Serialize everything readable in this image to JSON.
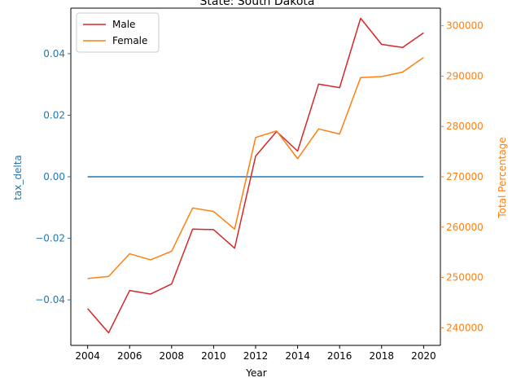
{
  "chart_data": {
    "type": "line",
    "title": "State: South Dakota",
    "xlabel": "Year",
    "ylabel_left": "tax_delta",
    "ylabel_right": "Total Percentage",
    "x": [
      2004,
      2005,
      2006,
      2007,
      2008,
      2009,
      2010,
      2011,
      2012,
      2013,
      2014,
      2015,
      2016,
      2017,
      2018,
      2019,
      2020
    ],
    "x_ticks": [
      "2004",
      "2006",
      "2008",
      "2010",
      "2012",
      "2014",
      "2016",
      "2018",
      "2020"
    ],
    "xlim": [
      2003.2,
      2020.8
    ],
    "left_axis": {
      "ylim": [
        -0.0548,
        0.0548
      ],
      "ticks": [
        -0.04,
        -0.02,
        0.0,
        0.02,
        0.04
      ],
      "tick_labels": [
        "−0.04",
        "−0.02",
        "0.00",
        "0.02",
        "0.04"
      ],
      "color": "#1f77b4"
    },
    "right_axis": {
      "ylim": [
        236500,
        303500
      ],
      "ticks": [
        240000,
        250000,
        260000,
        270000,
        280000,
        290000,
        300000
      ],
      "tick_labels": [
        "240000",
        "250000",
        "260000",
        "270000",
        "280000",
        "290000",
        "300000"
      ],
      "color": "#ff7f0e"
    },
    "series": [
      {
        "axis": "left",
        "color": "#1f77b4",
        "values": [
          0,
          0,
          0,
          0,
          0,
          0,
          0,
          0,
          0,
          0,
          0,
          0,
          0,
          0,
          0,
          0,
          0
        ]
      },
      {
        "name": "Male",
        "axis": "right",
        "color": "#d62728",
        "values": [
          243800,
          239000,
          247400,
          246700,
          248700,
          259600,
          259500,
          255800,
          274100,
          279000,
          275100,
          288400,
          287700,
          301500,
          296300,
          295700,
          298600
        ]
      },
      {
        "name": "Female",
        "axis": "right",
        "color": "#ff7f0e",
        "values": [
          249800,
          250200,
          254700,
          253500,
          255200,
          263800,
          263100,
          259600,
          277800,
          279100,
          273600,
          279500,
          278500,
          289700,
          289900,
          290800,
          293700
        ]
      }
    ],
    "legend": {
      "placement": "upper-left",
      "entries": [
        "Male",
        "Female"
      ]
    },
    "grid": false
  }
}
